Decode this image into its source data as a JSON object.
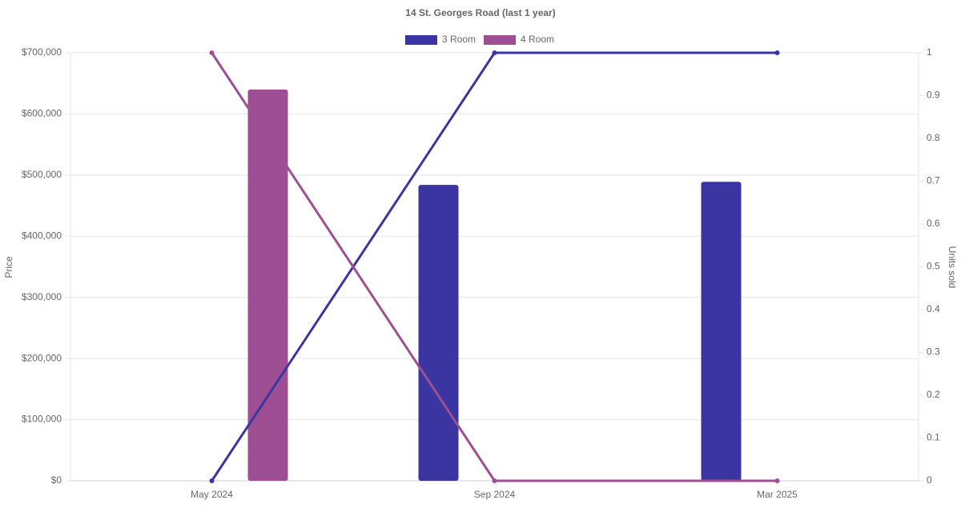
{
  "chart_data": {
    "type": "bar-line",
    "title": "14 St. Georges Road (last 1 year)",
    "y_label": "Price",
    "y2_label": "Units sold",
    "categories": [
      "May 2024",
      "Sep 2024",
      "Mar 2025"
    ],
    "series": [
      {
        "name": "3 Room",
        "color": "#3a35a0",
        "values": [
          null,
          484000,
          489000
        ],
        "units_sold": [
          0,
          1,
          1
        ]
      },
      {
        "name": "4 Room",
        "color": "#9e4f93",
        "values": [
          640000,
          null,
          null
        ],
        "units_sold": [
          1,
          0,
          0
        ]
      }
    ],
    "ylim": [
      0,
      700000
    ],
    "yticks": [
      {
        "value": 0,
        "label": "$0"
      },
      {
        "value": 100000,
        "label": "$100,000"
      },
      {
        "value": 200000,
        "label": "$200,000"
      },
      {
        "value": 300000,
        "label": "$300,000"
      },
      {
        "value": 400000,
        "label": "$400,000"
      },
      {
        "value": 500000,
        "label": "$500,000"
      },
      {
        "value": 600000,
        "label": "$600,000"
      },
      {
        "value": 700000,
        "label": "$700,000"
      }
    ],
    "y2lim": [
      0,
      1
    ],
    "y2ticks": [
      0,
      0.1,
      0.2,
      0.3,
      0.4,
      0.5,
      0.6,
      0.7,
      0.8,
      0.9,
      1
    ],
    "grid": true
  }
}
